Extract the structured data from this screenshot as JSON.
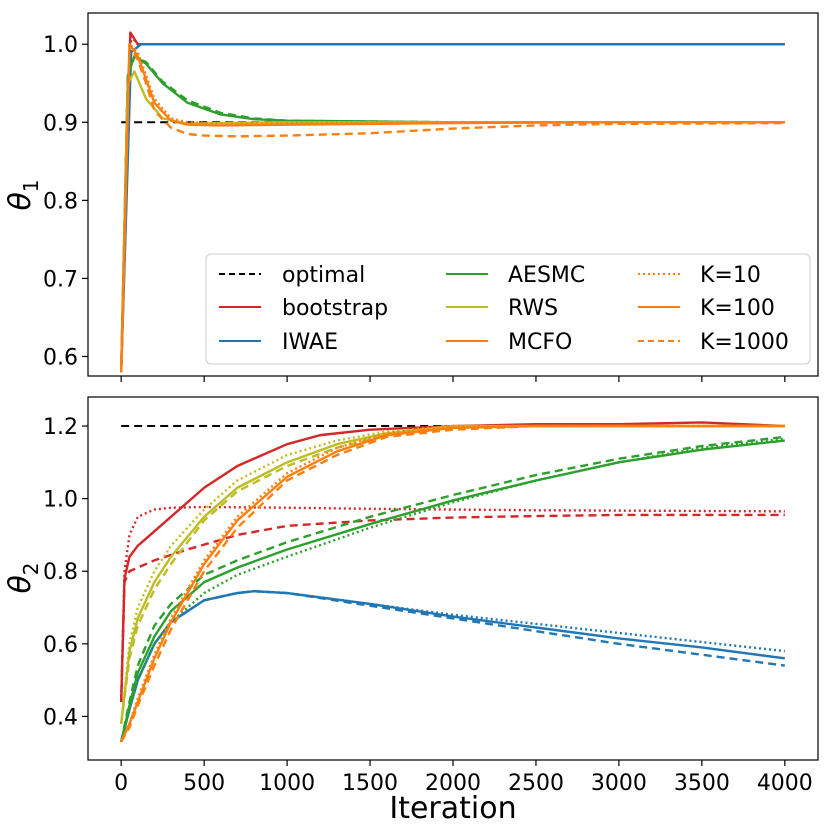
{
  "chart_data": [
    {
      "type": "line",
      "panel": "top",
      "ylabel_symbol": "θ",
      "ylabel_subscript": "1",
      "xlim": [
        -200,
        4200
      ],
      "ylim": [
        0.575,
        1.04
      ],
      "xticks": [
        0,
        500,
        1000,
        1500,
        2000,
        2500,
        3000,
        3500,
        4000
      ],
      "yticks": [
        0.6,
        0.7,
        0.8,
        0.9,
        1.0
      ],
      "ytick_labels": [
        "0.6",
        "0.7",
        "0.8",
        "0.9",
        "1.0"
      ],
      "legend_position": "lower-right",
      "series": [
        {
          "name": "optimal",
          "style": "dashed",
          "color": "#000000",
          "x": [
            0,
            4000
          ],
          "y": [
            0.9,
            0.9
          ]
        },
        {
          "name": "bootstrap",
          "variant": "K=10",
          "style": "dotted",
          "color": "#d62728",
          "x": [
            0,
            60,
            100,
            200,
            4000
          ],
          "y": [
            0.58,
            1.01,
            1.0,
            1.0,
            1.0
          ]
        },
        {
          "name": "bootstrap",
          "variant": "K=100",
          "style": "solid",
          "color": "#d62728",
          "x": [
            0,
            55,
            100,
            200,
            4000
          ],
          "y": [
            0.58,
            1.015,
            1.0,
            1.0,
            1.0
          ]
        },
        {
          "name": "IWAE",
          "variant": "K=100",
          "style": "solid",
          "color": "#1f77b4",
          "x": [
            0,
            60,
            120,
            200,
            4000
          ],
          "y": [
            0.58,
            0.99,
            1.0,
            1.0,
            1.0
          ]
        },
        {
          "name": "AESMC",
          "variant": "K=100",
          "style": "solid",
          "color": "#2ca02c",
          "x": [
            0,
            40,
            80,
            150,
            250,
            400,
            600,
            800,
            1000,
            1500,
            2000,
            3000,
            4000
          ],
          "y": [
            0.58,
            0.96,
            0.985,
            0.975,
            0.95,
            0.925,
            0.91,
            0.904,
            0.902,
            0.901,
            0.9,
            0.9,
            0.9
          ]
        },
        {
          "name": "AESMC",
          "variant": "K=1000",
          "style": "dashed",
          "color": "#2ca02c",
          "x": [
            0,
            40,
            80,
            150,
            250,
            400,
            600,
            800,
            1000,
            1500,
            2000,
            3000,
            4000
          ],
          "y": [
            0.58,
            0.96,
            0.984,
            0.977,
            0.952,
            0.928,
            0.912,
            0.905,
            0.902,
            0.901,
            0.9,
            0.9,
            0.9
          ]
        },
        {
          "name": "RWS",
          "variant": "K=100",
          "style": "solid",
          "color": "#bcbd22",
          "x": [
            0,
            40,
            80,
            150,
            250,
            400,
            600,
            1000,
            2000,
            3000,
            4000
          ],
          "y": [
            0.58,
            0.95,
            0.965,
            0.93,
            0.905,
            0.898,
            0.899,
            0.9,
            0.9,
            0.9,
            0.9
          ]
        },
        {
          "name": "MCFO",
          "variant": "K=10",
          "style": "dotted",
          "color": "#ff7f0e",
          "x": [
            0,
            50,
            100,
            150,
            200,
            300,
            400,
            600,
            1000,
            2000,
            3000,
            4000
          ],
          "y": [
            0.58,
            1.0,
            0.99,
            0.96,
            0.93,
            0.905,
            0.9,
            0.898,
            0.899,
            0.9,
            0.9,
            0.9
          ]
        },
        {
          "name": "MCFO",
          "variant": "K=100",
          "style": "solid",
          "color": "#ff7f0e",
          "x": [
            0,
            50,
            100,
            150,
            200,
            300,
            400,
            600,
            1000,
            2000,
            3000,
            4000
          ],
          "y": [
            0.58,
            1.0,
            0.985,
            0.955,
            0.925,
            0.902,
            0.897,
            0.896,
            0.897,
            0.899,
            0.9,
            0.9
          ]
        },
        {
          "name": "MCFO",
          "variant": "K=1000",
          "style": "dashed",
          "color": "#ff7f0e",
          "x": [
            0,
            50,
            100,
            150,
            200,
            300,
            400,
            500,
            700,
            1000,
            1500,
            2000,
            2500,
            3000,
            4000
          ],
          "y": [
            0.58,
            1.0,
            0.98,
            0.95,
            0.915,
            0.893,
            0.885,
            0.883,
            0.882,
            0.883,
            0.886,
            0.892,
            0.896,
            0.898,
            0.899
          ]
        }
      ],
      "legend": [
        {
          "label": "optimal",
          "style": "dashed",
          "color": "#000000"
        },
        {
          "label": "bootstrap",
          "style": "solid",
          "color": "#d62728"
        },
        {
          "label": "IWAE",
          "style": "solid",
          "color": "#1f77b4"
        },
        {
          "label": "AESMC",
          "style": "solid",
          "color": "#2ca02c"
        },
        {
          "label": "RWS",
          "style": "solid",
          "color": "#bcbd22"
        },
        {
          "label": "MCFO",
          "style": "solid",
          "color": "#ff7f0e"
        },
        {
          "label": "K=10",
          "style": "dotted",
          "color": "#ff7f0e"
        },
        {
          "label": "K=100",
          "style": "solid",
          "color": "#ff7f0e"
        },
        {
          "label": "K=1000",
          "style": "dashed",
          "color": "#ff7f0e"
        }
      ]
    },
    {
      "type": "line",
      "panel": "bottom",
      "xlabel": "Iteration",
      "ylabel_symbol": "θ",
      "ylabel_subscript": "2",
      "xlim": [
        -200,
        4200
      ],
      "ylim": [
        0.28,
        1.28
      ],
      "xticks": [
        0,
        500,
        1000,
        1500,
        2000,
        2500,
        3000,
        3500,
        4000
      ],
      "xtick_labels": [
        "0",
        "500",
        "1000",
        "1500",
        "2000",
        "2500",
        "3000",
        "3500",
        "4000"
      ],
      "yticks": [
        0.4,
        0.6,
        0.8,
        1.0,
        1.2
      ],
      "ytick_labels": [
        "0.4",
        "0.6",
        "0.8",
        "1.0",
        "1.2"
      ],
      "series": [
        {
          "name": "optimal",
          "style": "dashed",
          "color": "#000000",
          "x": [
            0,
            2000
          ],
          "y": [
            1.2,
            1.2
          ]
        },
        {
          "name": "bootstrap",
          "variant": "K=10",
          "style": "dotted",
          "color": "#d62728",
          "x": [
            0,
            20,
            50,
            100,
            200,
            300,
            500,
            1000,
            1500,
            2000,
            2500,
            3000,
            3500,
            4000
          ],
          "y": [
            0.44,
            0.8,
            0.9,
            0.95,
            0.97,
            0.975,
            0.977,
            0.975,
            0.972,
            0.97,
            0.968,
            0.967,
            0.966,
            0.965
          ]
        },
        {
          "name": "bootstrap",
          "variant": "K=100",
          "style": "solid",
          "color": "#d62728",
          "x": [
            0,
            20,
            50,
            100,
            200,
            300,
            500,
            700,
            1000,
            1200,
            1500,
            2000,
            2500,
            3000,
            3500,
            4000
          ],
          "y": [
            0.44,
            0.78,
            0.84,
            0.87,
            0.91,
            0.95,
            1.03,
            1.09,
            1.15,
            1.175,
            1.19,
            1.2,
            1.205,
            1.205,
            1.21,
            1.2
          ]
        },
        {
          "name": "bootstrap",
          "variant": "K=1000",
          "style": "dashed",
          "color": "#d62728",
          "x": [
            0,
            20,
            50,
            100,
            200,
            400,
            700,
            1000,
            1500,
            2000,
            2500,
            3000,
            3500,
            4000
          ],
          "y": [
            0.44,
            0.77,
            0.8,
            0.81,
            0.83,
            0.86,
            0.9,
            0.925,
            0.94,
            0.948,
            0.952,
            0.955,
            0.955,
            0.955
          ]
        },
        {
          "name": "IWAE",
          "variant": "K=10",
          "style": "dotted",
          "color": "#1f77b4",
          "x": [
            0,
            50,
            100,
            200,
            300,
            500,
            700,
            800,
            1000,
            1500,
            2000,
            2500,
            3000,
            3500,
            4000
          ],
          "y": [
            0.33,
            0.42,
            0.5,
            0.6,
            0.66,
            0.72,
            0.74,
            0.745,
            0.74,
            0.71,
            0.68,
            0.655,
            0.63,
            0.605,
            0.58
          ]
        },
        {
          "name": "IWAE",
          "variant": "K=100",
          "style": "solid",
          "color": "#1f77b4",
          "x": [
            0,
            50,
            100,
            200,
            300,
            500,
            700,
            800,
            1000,
            1500,
            2000,
            2500,
            3000,
            3500,
            4000
          ],
          "y": [
            0.33,
            0.42,
            0.5,
            0.6,
            0.66,
            0.72,
            0.74,
            0.745,
            0.74,
            0.71,
            0.675,
            0.645,
            0.615,
            0.59,
            0.56
          ]
        },
        {
          "name": "IWAE",
          "variant": "K=1000",
          "style": "dashed",
          "color": "#1f77b4",
          "x": [
            0,
            50,
            100,
            200,
            300,
            500,
            700,
            800,
            1000,
            1500,
            2000,
            2500,
            3000,
            3500,
            4000
          ],
          "y": [
            0.33,
            0.42,
            0.5,
            0.6,
            0.66,
            0.72,
            0.74,
            0.745,
            0.74,
            0.705,
            0.67,
            0.635,
            0.6,
            0.57,
            0.54
          ]
        },
        {
          "name": "AESMC",
          "variant": "K=10",
          "style": "dotted",
          "color": "#2ca02c",
          "x": [
            0,
            50,
            100,
            200,
            300,
            500,
            700,
            1000,
            1500,
            2000,
            2500,
            3000,
            3500,
            4000
          ],
          "y": [
            0.33,
            0.42,
            0.5,
            0.6,
            0.66,
            0.74,
            0.79,
            0.84,
            0.92,
            0.99,
            1.05,
            1.1,
            1.14,
            1.165
          ]
        },
        {
          "name": "AESMC",
          "variant": "K=100",
          "style": "solid",
          "color": "#2ca02c",
          "x": [
            0,
            50,
            100,
            200,
            300,
            500,
            700,
            1000,
            1500,
            2000,
            2500,
            3000,
            3500,
            4000
          ],
          "y": [
            0.33,
            0.43,
            0.52,
            0.62,
            0.69,
            0.77,
            0.81,
            0.86,
            0.93,
            0.995,
            1.05,
            1.1,
            1.135,
            1.16
          ]
        },
        {
          "name": "AESMC",
          "variant": "K=1000",
          "style": "dashed",
          "color": "#2ca02c",
          "x": [
            0,
            50,
            100,
            200,
            300,
            500,
            700,
            1000,
            1500,
            2000,
            2500,
            3000,
            3500,
            4000
          ],
          "y": [
            0.33,
            0.44,
            0.54,
            0.65,
            0.71,
            0.79,
            0.83,
            0.88,
            0.95,
            1.01,
            1.065,
            1.11,
            1.145,
            1.17
          ]
        },
        {
          "name": "RWS",
          "variant": "K=10",
          "style": "dotted",
          "color": "#bcbd22",
          "x": [
            0,
            50,
            100,
            200,
            300,
            500,
            700,
            1000,
            1300,
            1600,
            2000,
            2500,
            3000,
            3500,
            4000
          ],
          "y": [
            0.38,
            0.6,
            0.7,
            0.8,
            0.87,
            0.97,
            1.05,
            1.12,
            1.16,
            1.185,
            1.2,
            1.2,
            1.2,
            1.2,
            1.2
          ]
        },
        {
          "name": "RWS",
          "variant": "K=100",
          "style": "solid",
          "color": "#bcbd22",
          "x": [
            0,
            50,
            100,
            200,
            300,
            500,
            700,
            1000,
            1300,
            1600,
            2000,
            2500,
            3000,
            3500,
            4000
          ],
          "y": [
            0.38,
            0.58,
            0.67,
            0.77,
            0.84,
            0.95,
            1.03,
            1.1,
            1.15,
            1.18,
            1.2,
            1.2,
            1.2,
            1.2,
            1.2
          ]
        },
        {
          "name": "RWS",
          "variant": "K=1000",
          "style": "dashed",
          "color": "#bcbd22",
          "x": [
            0,
            50,
            100,
            200,
            300,
            500,
            700,
            1000,
            1300,
            1600,
            2000,
            2500,
            3000,
            3500,
            4000
          ],
          "y": [
            0.38,
            0.56,
            0.65,
            0.75,
            0.82,
            0.94,
            1.02,
            1.09,
            1.14,
            1.175,
            1.195,
            1.2,
            1.2,
            1.2,
            1.2
          ]
        },
        {
          "name": "MCFO",
          "variant": "K=10",
          "style": "dotted",
          "color": "#ff7f0e",
          "x": [
            0,
            50,
            100,
            200,
            300,
            500,
            700,
            1000,
            1300,
            1600,
            2000,
            2500,
            3000,
            3500,
            4000
          ],
          "y": [
            0.33,
            0.38,
            0.45,
            0.57,
            0.67,
            0.83,
            0.95,
            1.07,
            1.14,
            1.18,
            1.2,
            1.2,
            1.2,
            1.2,
            1.2
          ]
        },
        {
          "name": "MCFO",
          "variant": "K=100",
          "style": "solid",
          "color": "#ff7f0e",
          "x": [
            0,
            50,
            100,
            200,
            300,
            500,
            700,
            1000,
            1300,
            1600,
            2000,
            2500,
            3000,
            3500,
            4000
          ],
          "y": [
            0.33,
            0.38,
            0.44,
            0.56,
            0.66,
            0.82,
            0.94,
            1.06,
            1.13,
            1.175,
            1.195,
            1.2,
            1.2,
            1.2,
            1.2
          ]
        },
        {
          "name": "MCFO",
          "variant": "K=1000",
          "style": "dashed",
          "color": "#ff7f0e",
          "x": [
            0,
            50,
            100,
            200,
            300,
            500,
            700,
            1000,
            1300,
            1600,
            2000,
            2500,
            3000,
            3500,
            4000
          ],
          "y": [
            0.33,
            0.37,
            0.43,
            0.54,
            0.64,
            0.8,
            0.92,
            1.05,
            1.12,
            1.17,
            1.19,
            1.2,
            1.2,
            1.2,
            1.2
          ]
        }
      ]
    }
  ]
}
